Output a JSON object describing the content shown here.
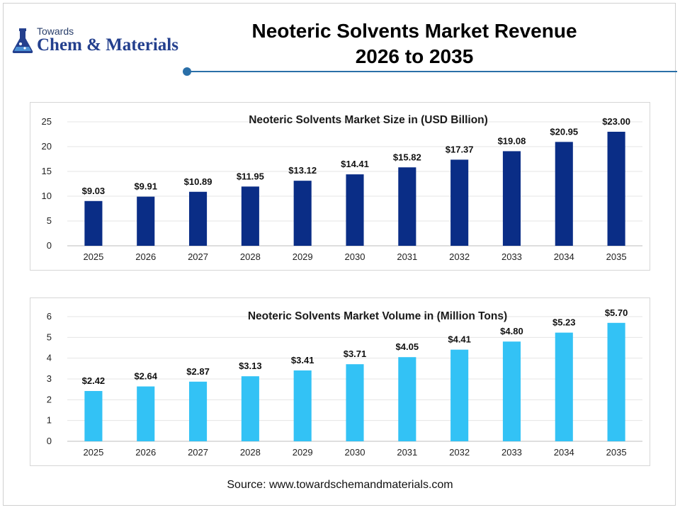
{
  "header": {
    "logo_small": "Towards",
    "logo_big": "Chem & Materials",
    "title_line1": "Neoteric Solvents Market Revenue",
    "title_line2": "2026 to 2035"
  },
  "colors": {
    "revenue_bar": "#0a2d86",
    "volume_bar": "#33c2f5",
    "accent": "#2a6fa8"
  },
  "chart_data": [
    {
      "type": "bar",
      "title": "Neoteric Solvents Market Size in (USD Billion)",
      "categories": [
        "2025",
        "2026",
        "2027",
        "2028",
        "2029",
        "2030",
        "2031",
        "2032",
        "2033",
        "2034",
        "2035"
      ],
      "values": [
        9.03,
        9.91,
        10.89,
        11.95,
        13.12,
        14.41,
        15.82,
        17.37,
        19.08,
        20.95,
        23.0
      ],
      "data_labels": [
        "$9.03",
        "$9.91",
        "$10.89",
        "$11.95",
        "$13.12",
        "$14.41",
        "$15.82",
        "$17.37",
        "$19.08",
        "$20.95",
        "$23.00"
      ],
      "ylim": [
        0,
        25
      ],
      "yticks": [
        "0",
        "5",
        "10",
        "15",
        "20",
        "25"
      ],
      "grid": true
    },
    {
      "type": "bar",
      "title": "Neoteric Solvents Market Volume in (Million Tons)",
      "categories": [
        "2025",
        "2026",
        "2027",
        "2028",
        "2029",
        "2030",
        "2031",
        "2032",
        "2033",
        "2034",
        "2035"
      ],
      "values": [
        2.42,
        2.64,
        2.87,
        3.13,
        3.41,
        3.71,
        4.05,
        4.41,
        4.8,
        5.23,
        5.7
      ],
      "data_labels": [
        "$2.42",
        "$2.64",
        "$2.87",
        "$3.13",
        "$3.41",
        "$3.71",
        "$4.05",
        "$4.41",
        "$4.80",
        "$5.23",
        "$5.70"
      ],
      "ylim": [
        0,
        6
      ],
      "yticks": [
        "0",
        "1",
        "2",
        "3",
        "4",
        "5",
        "6"
      ],
      "grid": true
    }
  ],
  "footer": {
    "source": "Source: www.towardschemandmaterials.com"
  }
}
